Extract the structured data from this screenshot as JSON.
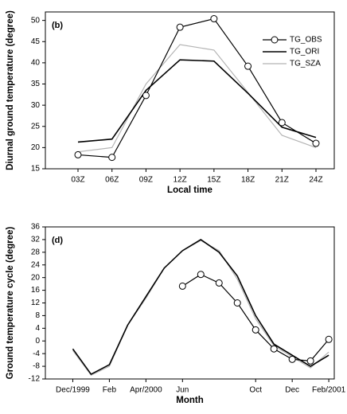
{
  "chart_data": [
    {
      "type": "line",
      "annotation": "(b)",
      "y_label": "Diurnal ground temperature (degree)",
      "x_label": "Local time",
      "categories": [
        "03Z",
        "06Z",
        "09Z",
        "12Z",
        "15Z",
        "18Z",
        "21Z",
        "24Z"
      ],
      "ylim": [
        15,
        52
      ],
      "yticks": [
        15,
        20,
        25,
        30,
        35,
        40,
        45,
        50
      ],
      "legend": "upper right",
      "series": [
        {
          "name": "TG_OBS",
          "color": "#000000",
          "marker": "circle",
          "values": [
            18.3,
            17.7,
            32.3,
            48.4,
            50.4,
            39.2,
            25.9,
            21.0
          ]
        },
        {
          "name": "TG_ORI",
          "color": "#000000",
          "values": [
            21.3,
            22.0,
            33.5,
            40.7,
            40.4,
            32.8,
            24.8,
            22.4
          ]
        },
        {
          "name": "TG_SZA",
          "color": "#b4b4b4",
          "values": [
            19.0,
            20.0,
            35.0,
            44.3,
            43.0,
            33.0,
            22.9,
            20.0
          ]
        }
      ]
    },
    {
      "type": "line",
      "annotation": "(d)",
      "y_label": "Ground temperature cycle (degree)",
      "x_label": "Month",
      "xlim": [
        -1.5,
        14.3
      ],
      "xticks": [
        {
          "value": 0,
          "label": "Dec/1999"
        },
        {
          "value": 2,
          "label": "Feb"
        },
        {
          "value": 4,
          "label": "Apr/2000"
        },
        {
          "value": 6,
          "label": "Jun"
        },
        {
          "value": 10,
          "label": "Oct"
        },
        {
          "value": 12,
          "label": "Dec"
        },
        {
          "value": 14,
          "label": "Feb/2001"
        }
      ],
      "ylim": [
        -12,
        36
      ],
      "yticks": [
        -12,
        -8,
        -4,
        0,
        4,
        8,
        12,
        16,
        20,
        24,
        28,
        32,
        36
      ],
      "series": [
        {
          "name": "TG_OBS",
          "color": "#000000",
          "marker": "circle",
          "x": [
            6,
            7,
            8,
            9,
            10,
            11,
            12,
            13,
            14
          ],
          "values": [
            17.3,
            21,
            18.3,
            12,
            3.5,
            -2.5,
            -5.8,
            -6.3,
            0.5
          ]
        },
        {
          "name": "TG_ORI",
          "color": "#000000",
          "x": [
            0,
            1,
            2,
            3,
            4,
            5,
            6,
            7,
            8,
            9,
            10,
            11,
            12,
            13,
            14
          ],
          "values": [
            -2.5,
            -10.5,
            -7.5,
            5,
            14,
            23,
            28.5,
            32,
            28,
            20.5,
            8,
            -1,
            -4.5,
            -8,
            -4.5
          ]
        },
        {
          "name": "TG_SZA",
          "color": "#b4b4b4",
          "x": [
            0,
            1,
            2,
            3,
            4,
            5,
            6,
            7,
            8,
            9,
            10,
            11,
            12,
            13,
            14
          ],
          "values": [
            -3,
            -10.8,
            -8,
            5,
            13.5,
            23,
            28.5,
            31.7,
            28.5,
            19.5,
            7,
            -1.5,
            -5,
            -8.5,
            -3.5
          ]
        }
      ]
    }
  ]
}
